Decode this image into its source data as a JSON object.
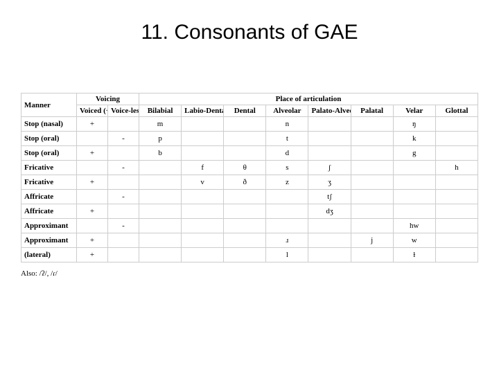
{
  "title": "11. Consonants of GAE",
  "table": {
    "header": {
      "manner": "Manner",
      "voicing": "Voicing",
      "place": "Place of articulation",
      "voiced": "Voiced (+)",
      "voiceless": "Voice-less (-)",
      "places": [
        "Bilabial",
        "Labio-Dental",
        "Dental",
        "Alveolar",
        "Palato-Alveolar",
        "Palatal",
        "Velar",
        "Glottal"
      ]
    },
    "rows": [
      {
        "manner": "Stop (nasal)",
        "voiced": "+",
        "voiceless": "",
        "cells": [
          "m",
          "",
          "",
          "n",
          "",
          "",
          "ŋ",
          ""
        ]
      },
      {
        "manner": "Stop (oral)",
        "voiced": "",
        "voiceless": "-",
        "cells": [
          "p",
          "",
          "",
          "t",
          "",
          "",
          "k",
          ""
        ]
      },
      {
        "manner": "Stop (oral)",
        "voiced": "+",
        "voiceless": "",
        "cells": [
          "b",
          "",
          "",
          "d",
          "",
          "",
          "g",
          ""
        ]
      },
      {
        "manner": "Fricative",
        "voiced": "",
        "voiceless": "-",
        "cells": [
          "",
          "f",
          "θ",
          "s",
          "ʃ",
          "",
          "",
          "h"
        ]
      },
      {
        "manner": "Fricative",
        "voiced": "+",
        "voiceless": "",
        "cells": [
          "",
          "v",
          "ð",
          "z",
          "ʒ",
          "",
          "",
          ""
        ]
      },
      {
        "manner": "Affricate",
        "voiced": "",
        "voiceless": "-",
        "cells": [
          "",
          "",
          "",
          "",
          "tʃ",
          "",
          "",
          ""
        ]
      },
      {
        "manner": "Affricate",
        "voiced": "+",
        "voiceless": "",
        "cells": [
          "",
          "",
          "",
          "",
          "dʒ",
          "",
          "",
          ""
        ]
      },
      {
        "manner": "Approximant",
        "voiced": "",
        "voiceless": "-",
        "cells": [
          "",
          "",
          "",
          "",
          "",
          "",
          "hw",
          ""
        ]
      },
      {
        "manner": "Approximant",
        "voiced": "+",
        "voiceless": "",
        "cells": [
          "",
          "",
          "",
          "ɹ",
          "",
          "j",
          "w",
          ""
        ]
      },
      {
        "manner": "(lateral)",
        "voiced": "+",
        "voiceless": "",
        "cells": [
          "",
          "",
          "",
          "l",
          "",
          "",
          "ɫ",
          ""
        ]
      }
    ]
  },
  "footnote": "Also: /ʔ/, /ɾ/"
}
